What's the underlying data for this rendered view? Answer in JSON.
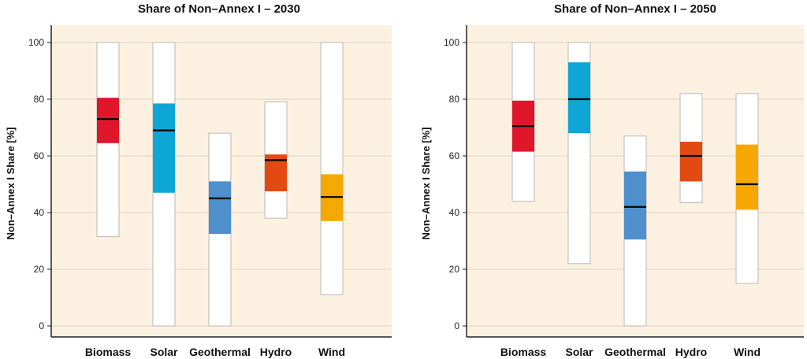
{
  "chart_data": [
    {
      "type": "box",
      "title": "Share of Non–Annex I – 2030",
      "ylabel": "Non–Annex I Share [%]",
      "xlabel": "",
      "ylim": [
        0,
        105
      ],
      "yticks": [
        0,
        20,
        40,
        60,
        80,
        100
      ],
      "grid": true,
      "background": "#fcf1e1",
      "categories": [
        "Biomass",
        "Solar",
        "Geothermal",
        "Hydro",
        "Wind"
      ],
      "series": [
        {
          "category": "Biomass",
          "min": 31.5,
          "q1": 64.5,
          "median": 73,
          "q3": 80.5,
          "max": 100,
          "color": "#e0162b"
        },
        {
          "category": "Solar",
          "min": 0,
          "q1": 47,
          "median": 69,
          "q3": 78.5,
          "max": 100,
          "color": "#0ea6d4"
        },
        {
          "category": "Geothermal",
          "min": 0,
          "q1": 32.5,
          "median": 45,
          "q3": 51,
          "max": 68,
          "color": "#4e8fcc"
        },
        {
          "category": "Hydro",
          "min": 38,
          "q1": 47.5,
          "median": 58.5,
          "q3": 60.5,
          "max": 79,
          "color": "#e34a12"
        },
        {
          "category": "Wind",
          "min": 11,
          "q1": 37,
          "median": 45.5,
          "q3": 53.5,
          "max": 100,
          "color": "#f5a800"
        }
      ]
    },
    {
      "type": "box",
      "title": "Share of Non–Annex I – 2050",
      "ylabel": "Non–Annex I Share [%]",
      "xlabel": "",
      "ylim": [
        0,
        105
      ],
      "yticks": [
        0,
        20,
        40,
        60,
        80,
        100
      ],
      "grid": true,
      "background": "#fcf1e1",
      "categories": [
        "Biomass",
        "Solar",
        "Geothermal",
        "Hydro",
        "Wind"
      ],
      "series": [
        {
          "category": "Biomass",
          "min": 44,
          "q1": 61.5,
          "median": 70.5,
          "q3": 79.5,
          "max": 100,
          "color": "#e0162b"
        },
        {
          "category": "Solar",
          "min": 22,
          "q1": 68,
          "median": 80,
          "q3": 93,
          "max": 100,
          "color": "#0ea6d4"
        },
        {
          "category": "Geothermal",
          "min": 0,
          "q1": 30.5,
          "median": 42,
          "q3": 54.5,
          "max": 67,
          "color": "#4e8fcc"
        },
        {
          "category": "Hydro",
          "min": 43.5,
          "q1": 51,
          "median": 60,
          "q3": 65,
          "max": 82,
          "color": "#e34a12"
        },
        {
          "category": "Wind",
          "min": 15,
          "q1": 41,
          "median": 50,
          "q3": 64,
          "max": 82,
          "color": "#f5a800"
        }
      ]
    }
  ]
}
